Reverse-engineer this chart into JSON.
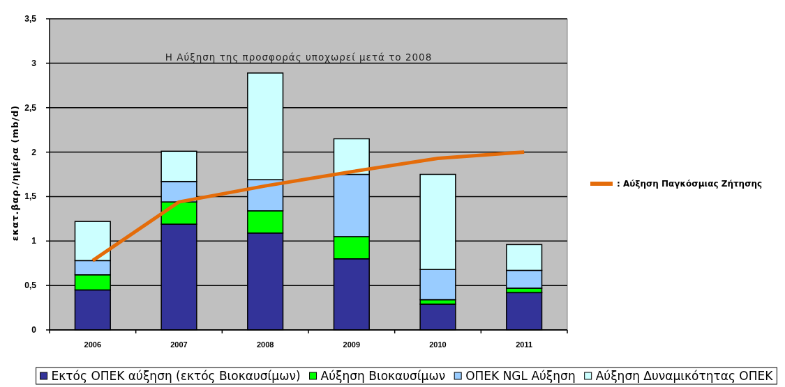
{
  "chart_data": {
    "type": "bar",
    "stacked": true,
    "annotations": [
      "Η Αύξηση της προσφοράς υποχωρεί μετά το 2008"
    ],
    "ylabel": "εκατ.βαρ./ημέρα (mb/d)",
    "categories": [
      "2006",
      "2007",
      "2008",
      "2009",
      "2010",
      "2011"
    ],
    "series": [
      {
        "name": "Εκτός ΟΠΕΚ αύξηση (εκτός Βιοκαυσίμων)",
        "color": "#333399",
        "values": [
          0.45,
          1.19,
          1.09,
          0.8,
          0.29,
          0.42
        ]
      },
      {
        "name": "Αύξηση Βιοκαυσίμων",
        "color": "#00ff00",
        "values": [
          0.17,
          0.25,
          0.25,
          0.25,
          0.05,
          0.05
        ]
      },
      {
        "name": "ΟΠΕΚ NGL Αύξηση",
        "color": "#99ccff",
        "values": [
          0.16,
          0.23,
          0.35,
          0.7,
          0.34,
          0.2
        ]
      },
      {
        "name": "Αύξηση Δυναμικότητας ΟΠΕΚ",
        "color": "#ccffff",
        "values": [
          0.44,
          0.34,
          1.2,
          0.4,
          1.07,
          0.29
        ]
      },
      {
        "name": ": Αύξηση Παγκόσμιας Ζήτησης",
        "type": "line",
        "color": "#e46c0a",
        "values": [
          0.78,
          1.44,
          1.62,
          1.78,
          1.93,
          2.0
        ]
      }
    ],
    "ylim": [
      0,
      3.5
    ],
    "yticks": [
      0,
      {
        "value": 0.5,
        "label": "0,5"
      },
      1,
      {
        "value": 1.5,
        "label": "1,5"
      },
      2,
      {
        "value": 2.5,
        "label": "2,5"
      },
      3,
      {
        "value": 3.5,
        "label": "3,5"
      }
    ],
    "grid": "y",
    "legend": "bottom"
  }
}
